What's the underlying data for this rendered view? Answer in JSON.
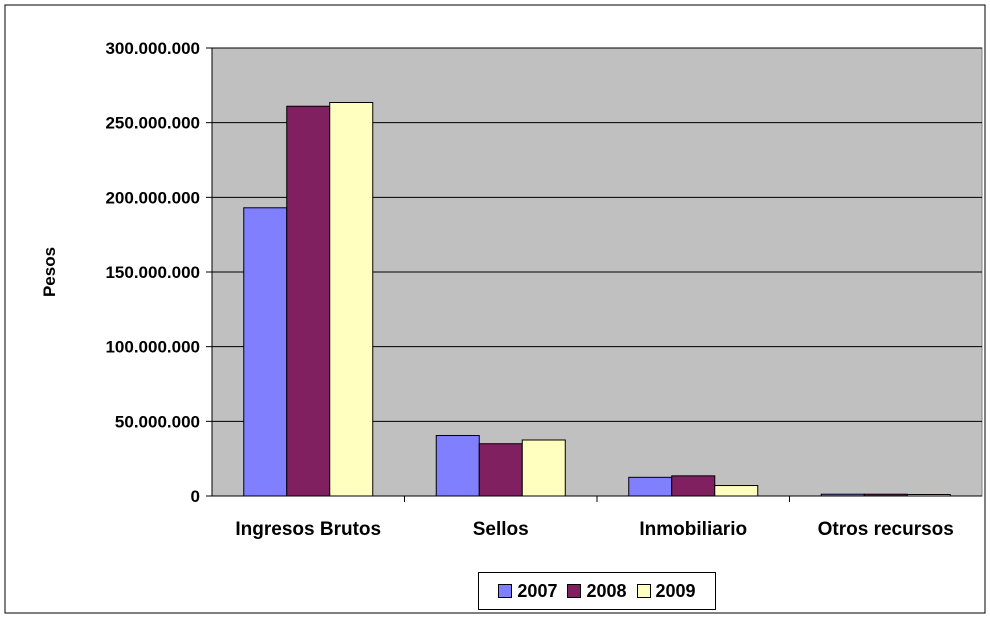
{
  "chart_data": {
    "type": "bar",
    "title": "",
    "xlabel": "",
    "ylabel": "Pesos",
    "ylim": [
      0,
      300000000
    ],
    "yticks": [
      "0",
      "50.000.000",
      "100.000.000",
      "150.000.000",
      "200.000.000",
      "250.000.000",
      "300.000.000"
    ],
    "ytick_values": [
      0,
      50000000,
      100000000,
      150000000,
      200000000,
      250000000,
      300000000
    ],
    "categories": [
      "Ingresos Brutos",
      "Sellos",
      "Inmobiliario",
      "Otros recursos"
    ],
    "series": [
      {
        "name": "2007",
        "color": "#8080FF",
        "values": [
          193000000,
          40500000,
          12500000,
          1200000
        ]
      },
      {
        "name": "2008",
        "color": "#802060",
        "values": [
          261000000,
          35000000,
          13500000,
          1200000
        ]
      },
      {
        "name": "2009",
        "color": "#FFFFC0",
        "values": [
          263500000,
          37500000,
          7000000,
          1000000
        ]
      }
    ],
    "grid": true,
    "plot_background": "#C0C0C0",
    "legend_position": "bottom"
  }
}
